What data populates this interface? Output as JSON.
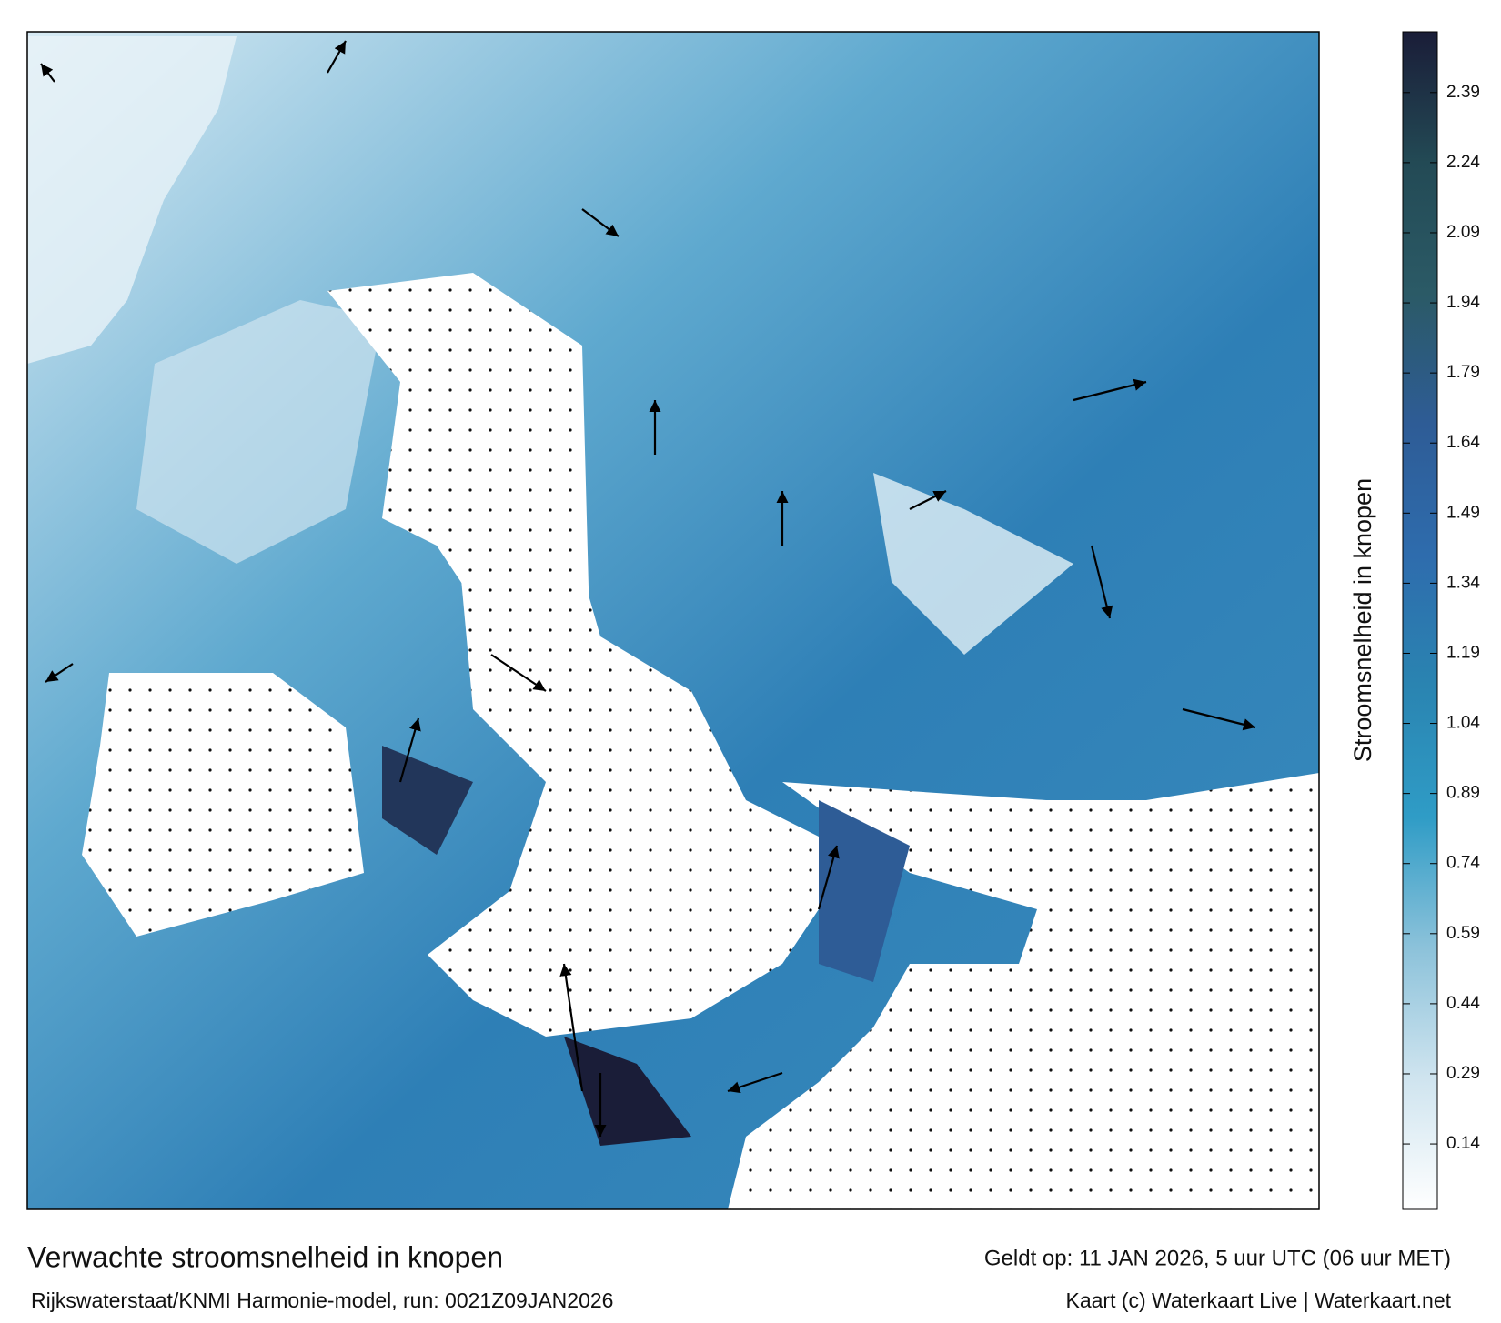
{
  "header": {
    "title": "Verwachte stroomsnelheid in knopen",
    "subtitle": "Rijkswaterstaat/KNMI Harmonie-model, run: 0021Z09JAN2026",
    "valid_time": "Geldt op: 11 JAN 2026, 5 uur UTC (06 uur MET)",
    "credit": "Kaart (c) Waterkaart Live | Waterkaart.net"
  },
  "colorbar": {
    "label": "Stroomsnelheid in knopen",
    "lim": [
      0,
      2.52
    ],
    "ticks": [
      0.14,
      0.29,
      0.44,
      0.59,
      0.74,
      0.89,
      1.04,
      1.19,
      1.34,
      1.49,
      1.64,
      1.79,
      1.94,
      2.09,
      2.24,
      2.39
    ],
    "colors": [
      "#ffffff",
      "#cfe4ef",
      "#8cc2da",
      "#2f9cc6",
      "#2a84b1",
      "#2e6cad",
      "#2e5c96",
      "#2b5a66",
      "#234a55",
      "#1a1d38"
    ]
  }
}
